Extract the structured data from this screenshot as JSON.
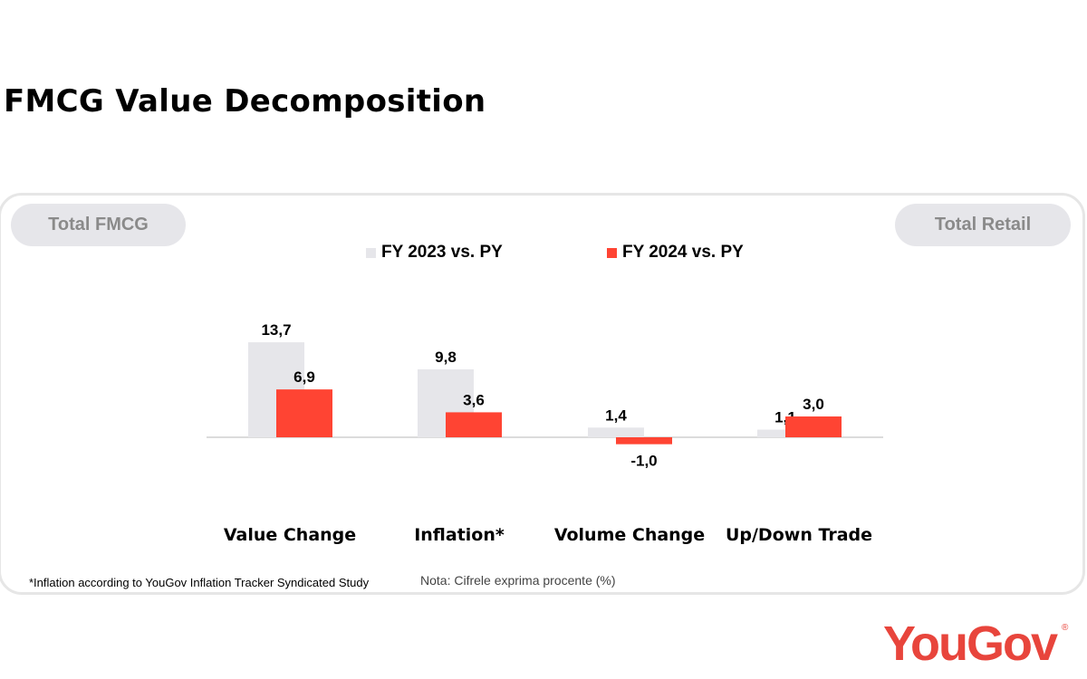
{
  "title": "FMCG Value Decomposition",
  "left_pill": "Total FMCG",
  "right_pill": "Total Retail",
  "footnote": "*Inflation according to YouGov Inflation Tracker Syndicated Study",
  "note": "Nota: Cifrele exprima procente (%)",
  "logo": "YouGov",
  "logo_mark": "®",
  "colors": {
    "fy2023": "#e6e6ea",
    "fy2024": "#ff4433"
  },
  "chart_data": {
    "type": "bar",
    "categories": [
      "Value Change",
      "Inflation*",
      "Volume Change",
      "Up/Down Trade"
    ],
    "series": [
      {
        "name": "FY 2023 vs. PY",
        "values": [
          13.7,
          9.8,
          1.4,
          1.1
        ],
        "labels": [
          "13,7",
          "9,8",
          "1,4",
          "1,1"
        ]
      },
      {
        "name": "FY 2024 vs. PY",
        "values": [
          6.9,
          3.6,
          -1.0,
          3.0
        ],
        "labels": [
          "6,9",
          "3,6",
          "-1,0",
          "3,0"
        ]
      }
    ],
    "legend": "top-center",
    "grid": false
  }
}
